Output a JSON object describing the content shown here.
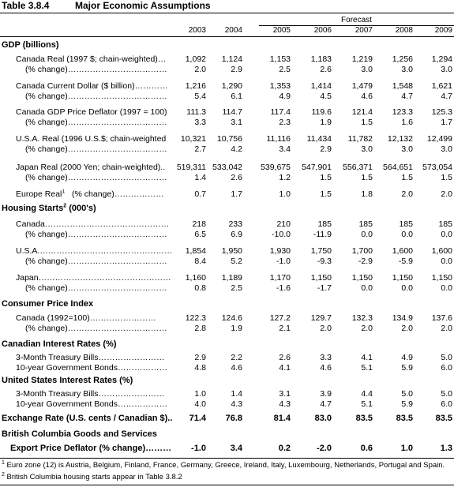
{
  "table": {
    "number": "Table 3.8.4",
    "title": "Major Economic Assumptions",
    "forecast_label": "Forecast",
    "years": [
      "2003",
      "2004",
      "2005",
      "2006",
      "2007",
      "2008",
      "2009"
    ]
  },
  "sections": {
    "gdp": "GDP (billions)",
    "housing": "Housing Starts",
    "housing_sup": "2",
    "housing_unit": " (000's)",
    "cpi": "Consumer Price Index",
    "cdn_rates": "Canadian Interest Rates (%)",
    "us_rates": "United States Interest Rates (%)",
    "bc_goods": "British Columbia Goods and Services"
  },
  "rows": [
    {
      "label": "Canada Real (1997 $; chain-weighted)…",
      "values": [
        "1,092",
        "1,124",
        "1,153",
        "1,183",
        "1,219",
        "1,256",
        "1,294"
      ]
    },
    {
      "label": "(% change)………………………………",
      "values": [
        "2.0",
        "2.9",
        "2.5",
        "2.6",
        "3.0",
        "3.0",
        "3.0"
      ]
    },
    {
      "label": "Canada Current Dollar ($ billion)…………",
      "values": [
        "1,216",
        "1,290",
        "1,353",
        "1,414",
        "1,479",
        "1,548",
        "1,621"
      ]
    },
    {
      "label": "(% change)………………………………",
      "values": [
        "5.4",
        "6.1",
        "4.9",
        "4.5",
        "4.6",
        "4.7",
        "4.7"
      ]
    },
    {
      "label": "Canada GDP Price Deflator (1997 = 100)",
      "values": [
        "111.3",
        "114.7",
        "117.4",
        "119.6",
        "121.4",
        "123.3",
        "125.3"
      ]
    },
    {
      "label": "(% change)………………………………",
      "values": [
        "3.3",
        "3.1",
        "2.3",
        "1.9",
        "1.5",
        "1.6",
        "1.7"
      ]
    },
    {
      "label": "U.S.A. Real (1996 U.S.$; chain-weighted",
      "values": [
        "10,321",
        "10,756",
        "11,116",
        "11,434",
        "11,782",
        "12,132",
        "12,499"
      ]
    },
    {
      "label": "(% change)………………………………",
      "values": [
        "2.7",
        "4.2",
        "3.4",
        "2.9",
        "3.0",
        "3.0",
        "3.0"
      ]
    },
    {
      "label": "Japan Real (2000 Yen; chain-weighted)..",
      "values": [
        "519,311",
        "533,042",
        "539,675",
        "547,901",
        "556,371",
        "564,651",
        "573,054"
      ]
    },
    {
      "label": "(% change)………………………………",
      "values": [
        "1.4",
        "2.6",
        "1.2",
        "1.5",
        "1.5",
        "1.5",
        "1.5"
      ]
    },
    {
      "label": "Europe Real",
      "label_sup": "1",
      "label_tail": "   (% change)………………",
      "values": [
        "0.7",
        "1.7",
        "1.0",
        "1.5",
        "1.8",
        "2.0",
        "2.0"
      ]
    },
    {
      "label": "Canada………………………………………",
      "values": [
        "218",
        "233",
        "210",
        "185",
        "185",
        "185",
        "185"
      ]
    },
    {
      "label": "(% change)………………………………",
      "values": [
        "6.5",
        "6.9",
        "-10.0",
        "-11.9",
        "0.0",
        "0.0",
        "0.0"
      ]
    },
    {
      "label": "U.S.A.…………………………………………",
      "values": [
        "1,854",
        "1,950",
        "1,930",
        "1,750",
        "1,700",
        "1,600",
        "1,600"
      ]
    },
    {
      "label": "(% change)………………………………",
      "values": [
        "8.4",
        "5.2",
        "-1.0",
        "-9.3",
        "-2.9",
        "-5.9",
        "0.0"
      ]
    },
    {
      "label": "Japan…………………………………………",
      "values": [
        "1,160",
        "1,189",
        "1,170",
        "1,150",
        "1,150",
        "1,150",
        "1,150"
      ]
    },
    {
      "label": "(% change)………………………………",
      "values": [
        "0.8",
        "2.5",
        "-1.6",
        "-1.7",
        "0.0",
        "0.0",
        "0.0"
      ]
    },
    {
      "label": "Canada  (1992=100)……………………",
      "values": [
        "122.3",
        "124.6",
        "127.2",
        "129.7",
        "132.3",
        "134.9",
        "137.6"
      ]
    },
    {
      "label": "(% change)………………………………",
      "values": [
        "2.8",
        "1.9",
        "2.1",
        "2.0",
        "2.0",
        "2.0",
        "2.0"
      ]
    },
    {
      "label": "3-Month Treasury Bills……………………",
      "values": [
        "2.9",
        "2.2",
        "2.6",
        "3.3",
        "4.1",
        "4.9",
        "5.0"
      ]
    },
    {
      "label": "10-year Government Bonds………………",
      "values": [
        "4.8",
        "4.6",
        "4.1",
        "4.6",
        "5.1",
        "5.9",
        "6.0"
      ]
    },
    {
      "label": "3-Month Treasury Bills……………………",
      "values": [
        "1.0",
        "1.4",
        "3.1",
        "3.9",
        "4.4",
        "5.0",
        "5.0"
      ]
    },
    {
      "label": "10-year Government Bonds………………",
      "values": [
        "4.0",
        "4.3",
        "4.3",
        "4.7",
        "5.1",
        "5.9",
        "6.0"
      ]
    },
    {
      "label": "Exchange Rate (U.S. cents / Canadian $)..",
      "values": [
        "71.4",
        "76.8",
        "81.4",
        "83.0",
        "83.5",
        "83.5",
        "83.5"
      ]
    },
    {
      "label": "Export Price Deflator (% change)………",
      "values": [
        "-1.0",
        "3.4",
        "0.2",
        "-2.0",
        "0.6",
        "1.0",
        "1.3"
      ]
    }
  ],
  "footnotes": {
    "fn1_mark": "1",
    "fn1_text": " Euro zone (12) is Austria, Belgium, Finland, France, Germany, Greece, Ireland, Italy, Luxembourg, Netherlands, Portugal and Spain.",
    "fn2_mark": "2",
    "fn2_text": " British Columbia housing starts appear in Table 3.8.2"
  }
}
